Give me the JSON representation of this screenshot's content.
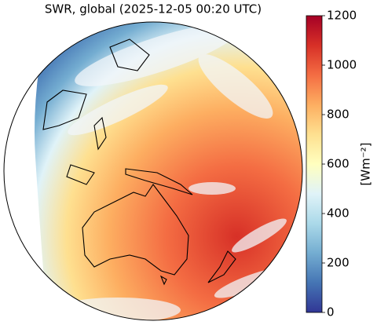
{
  "title": "SWR, global (2025-12-05 00:20 UTC)",
  "colorbar": {
    "label": "[Wm⁻²]",
    "lim": [
      0,
      1200
    ],
    "ticks": [
      0,
      200,
      400,
      600,
      800,
      1000,
      1200
    ],
    "colors": [
      "#313695",
      "#4575b4",
      "#74add1",
      "#abd9e9",
      "#e0f3f8",
      "#ffffbf",
      "#fee090",
      "#fdae61",
      "#f46d43",
      "#d73027",
      "#a50026"
    ]
  }
}
